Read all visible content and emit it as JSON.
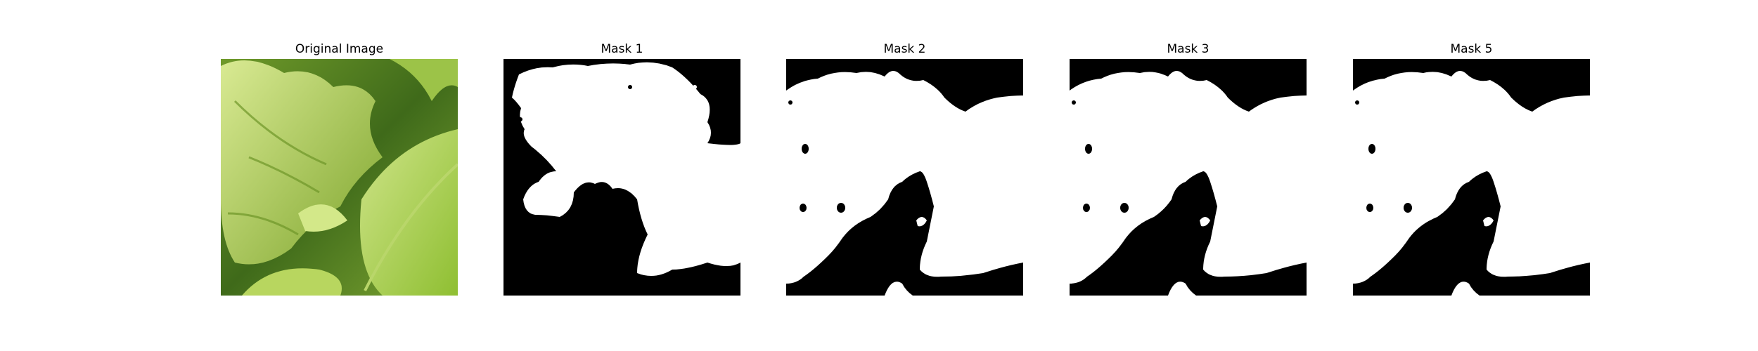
{
  "panels": [
    {
      "title": "Original Image"
    },
    {
      "title": "Mask 1"
    },
    {
      "title": "Mask 2"
    },
    {
      "title": "Mask 3"
    },
    {
      "title": "Mask 5"
    }
  ],
  "colors": {
    "leaf_light": "#c7e07a",
    "leaf_mid": "#95c13a",
    "leaf_dark": "#3f6a1a",
    "mask_foreground": "#ffffff",
    "mask_background": "#000000"
  }
}
